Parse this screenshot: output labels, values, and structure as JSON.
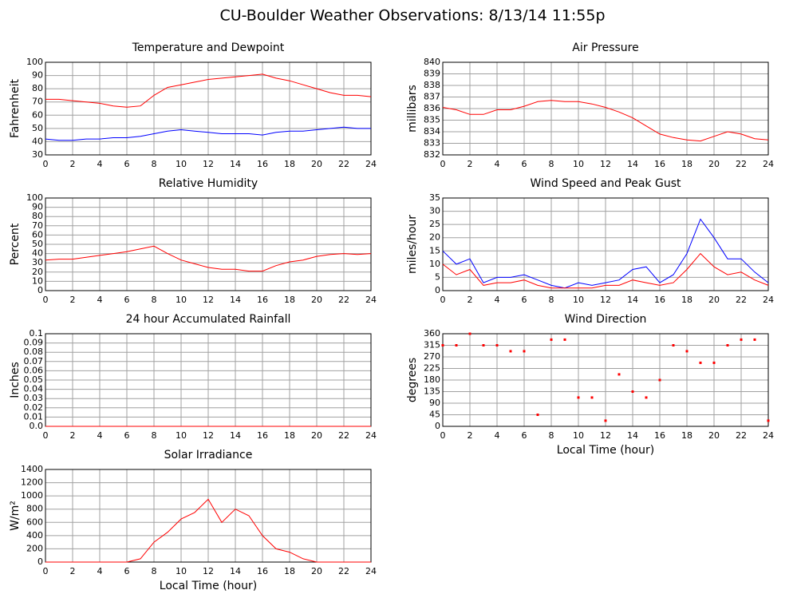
{
  "title": "CU-Boulder Weather Observations: 8/13/14 11:55p",
  "chart_data": [
    {
      "type": "line",
      "title": "Temperature and Dewpoint",
      "ylabel": "Fahrenheit",
      "x": [
        0,
        1,
        2,
        3,
        4,
        5,
        6,
        7,
        8,
        9,
        10,
        11,
        12,
        13,
        14,
        15,
        16,
        17,
        18,
        19,
        20,
        21,
        22,
        23,
        24
      ],
      "series": [
        {
          "color": "#ff0000",
          "values": [
            72,
            72,
            71,
            70,
            69,
            67,
            66,
            67,
            75,
            81,
            83,
            85,
            87,
            88,
            89,
            90,
            91,
            88,
            86,
            83,
            80,
            77,
            75,
            75,
            74
          ]
        },
        {
          "color": "#0000ff",
          "values": [
            42,
            41,
            41,
            42,
            42,
            43,
            43,
            44,
            46,
            48,
            49,
            48,
            47,
            46,
            46,
            46,
            45,
            47,
            48,
            48,
            49,
            50,
            51,
            50,
            50
          ]
        }
      ],
      "xlim": [
        0,
        24
      ],
      "xticks": [
        0,
        2,
        4,
        6,
        8,
        10,
        12,
        14,
        16,
        18,
        20,
        22,
        24
      ],
      "ylim": [
        30,
        100
      ],
      "yticks": [
        30,
        40,
        50,
        60,
        70,
        80,
        90,
        100
      ],
      "grid": true
    },
    {
      "type": "line",
      "title": "Air Pressure",
      "ylabel": "millibars",
      "x": [
        0,
        1,
        2,
        3,
        4,
        5,
        6,
        7,
        8,
        9,
        10,
        11,
        12,
        13,
        14,
        15,
        16,
        17,
        18,
        19,
        20,
        21,
        22,
        23,
        24
      ],
      "series": [
        {
          "color": "#ff0000",
          "values": [
            836.1,
            835.9,
            835.5,
            835.5,
            835.9,
            835.9,
            836.2,
            836.6,
            836.7,
            836.6,
            836.6,
            836.4,
            836.1,
            835.7,
            835.2,
            834.5,
            833.8,
            833.5,
            833.3,
            833.2,
            833.6,
            834.0,
            833.8,
            833.4,
            833.3
          ]
        }
      ],
      "xlim": [
        0,
        24
      ],
      "xticks": [
        0,
        2,
        4,
        6,
        8,
        10,
        12,
        14,
        16,
        18,
        20,
        22,
        24
      ],
      "ylim": [
        832,
        840
      ],
      "yticks": [
        832,
        833,
        834,
        835,
        836,
        837,
        838,
        839,
        840
      ],
      "grid": true
    },
    {
      "type": "line",
      "title": "Relative Humidity",
      "ylabel": "Percent",
      "x": [
        0,
        1,
        2,
        3,
        4,
        5,
        6,
        7,
        8,
        9,
        10,
        11,
        12,
        13,
        14,
        15,
        16,
        17,
        18,
        19,
        20,
        21,
        22,
        23,
        24
      ],
      "series": [
        {
          "color": "#ff0000",
          "values": [
            33,
            34,
            34,
            36,
            38,
            40,
            42,
            45,
            48,
            40,
            33,
            29,
            25,
            23,
            23,
            21,
            21,
            27,
            31,
            33,
            37,
            39,
            40,
            39,
            40
          ]
        }
      ],
      "xlim": [
        0,
        24
      ],
      "xticks": [
        0,
        2,
        4,
        6,
        8,
        10,
        12,
        14,
        16,
        18,
        20,
        22,
        24
      ],
      "ylim": [
        0,
        100
      ],
      "yticks": [
        0,
        10,
        20,
        30,
        40,
        50,
        60,
        70,
        80,
        90,
        100
      ],
      "grid": true
    },
    {
      "type": "line",
      "title": "Wind Speed and Peak Gust",
      "ylabel": "miles/hour",
      "x": [
        0,
        1,
        2,
        3,
        4,
        5,
        6,
        7,
        8,
        9,
        10,
        11,
        12,
        13,
        14,
        15,
        16,
        17,
        18,
        19,
        20,
        21,
        22,
        23,
        24
      ],
      "series": [
        {
          "color": "#0000ff",
          "values": [
            15,
            10,
            12,
            3,
            5,
            5,
            6,
            4,
            2,
            1,
            3,
            2,
            3,
            4,
            8,
            9,
            3,
            6,
            14,
            27,
            20,
            12,
            12,
            7,
            3
          ]
        },
        {
          "color": "#ff0000",
          "values": [
            10,
            6,
            8,
            2,
            3,
            3,
            4,
            2,
            1,
            1,
            1,
            1,
            2,
            2,
            4,
            3,
            2,
            3,
            8,
            14,
            9,
            6,
            7,
            4,
            2
          ]
        }
      ],
      "xlim": [
        0,
        24
      ],
      "xticks": [
        0,
        2,
        4,
        6,
        8,
        10,
        12,
        14,
        16,
        18,
        20,
        22,
        24
      ],
      "ylim": [
        0,
        35
      ],
      "yticks": [
        0,
        5,
        10,
        15,
        20,
        25,
        30,
        35
      ],
      "grid": true
    },
    {
      "type": "line",
      "title": "24 hour Accumulated Rainfall",
      "ylabel": "Inches",
      "x": [
        0,
        1,
        2,
        3,
        4,
        5,
        6,
        7,
        8,
        9,
        10,
        11,
        12,
        13,
        14,
        15,
        16,
        17,
        18,
        19,
        20,
        21,
        22,
        23,
        24
      ],
      "series": [
        {
          "color": "#ff0000",
          "values": [
            0,
            0,
            0,
            0,
            0,
            0,
            0,
            0,
            0,
            0,
            0,
            0,
            0,
            0,
            0,
            0,
            0,
            0,
            0,
            0,
            0,
            0,
            0,
            0,
            0
          ]
        }
      ],
      "xlim": [
        0,
        24
      ],
      "xticks": [
        0,
        2,
        4,
        6,
        8,
        10,
        12,
        14,
        16,
        18,
        20,
        22,
        24
      ],
      "ylim": [
        0,
        0.1
      ],
      "yticks": [
        {
          "value": 0,
          "label": "0.0"
        },
        0.01,
        0.02,
        0.03,
        0.04,
        0.05,
        0.06,
        0.07,
        0.08,
        0.09,
        0.1
      ],
      "grid": true
    },
    {
      "type": "scatter",
      "title": "Wind Direction",
      "ylabel": "degrees",
      "xlabel": "Local Time (hour)",
      "x": [
        0,
        1,
        2,
        3,
        4,
        5,
        6,
        7,
        8,
        9,
        10,
        11,
        12,
        13,
        14,
        15,
        16,
        17,
        18,
        19,
        20,
        21,
        22,
        23,
        24
      ],
      "series": [
        {
          "color": "#ff0000",
          "values": [
            315,
            315,
            360,
            315,
            315,
            292,
            292,
            45,
            337,
            337,
            112,
            112,
            22,
            202,
            135,
            112,
            180,
            315,
            292,
            247,
            247,
            315,
            337,
            337,
            22
          ]
        }
      ],
      "xlim": [
        0,
        24
      ],
      "xticks": [
        0,
        2,
        4,
        6,
        8,
        10,
        12,
        14,
        16,
        18,
        20,
        22,
        24
      ],
      "ylim": [
        0,
        360
      ],
      "yticks": [
        0,
        45,
        90,
        135,
        180,
        225,
        270,
        315,
        360
      ],
      "grid": true
    },
    {
      "type": "line",
      "title": "Solar Irradiance",
      "ylabel": "W/m²",
      "xlabel": "Local Time (hour)",
      "x": [
        0,
        1,
        2,
        3,
        4,
        5,
        6,
        7,
        8,
        9,
        10,
        11,
        12,
        13,
        14,
        15,
        16,
        17,
        18,
        19,
        20,
        21,
        22,
        23,
        24
      ],
      "series": [
        {
          "color": "#ff0000",
          "values": [
            0,
            0,
            0,
            0,
            0,
            0,
            0,
            50,
            300,
            450,
            650,
            750,
            950,
            600,
            800,
            700,
            400,
            200,
            150,
            50,
            0,
            0,
            0,
            0,
            0
          ]
        }
      ],
      "xlim": [
        0,
        24
      ],
      "xticks": [
        0,
        2,
        4,
        6,
        8,
        10,
        12,
        14,
        16,
        18,
        20,
        22,
        24
      ],
      "ylim": [
        0,
        1400
      ],
      "yticks": [
        0,
        200,
        400,
        600,
        800,
        1000,
        1200,
        1400
      ],
      "grid": true
    }
  ]
}
